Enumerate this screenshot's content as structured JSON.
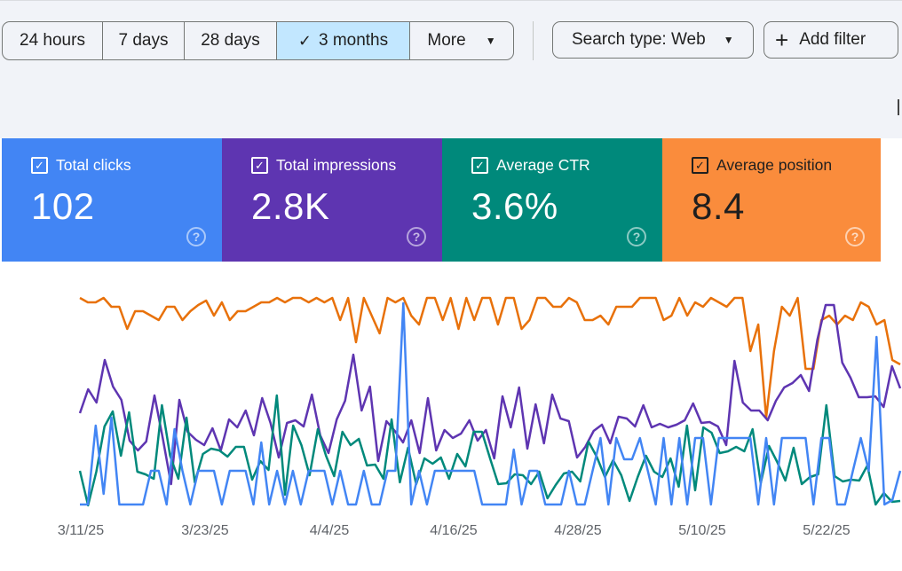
{
  "toolbar": {
    "ranges": [
      "24 hours",
      "7 days",
      "28 days",
      "3 months",
      "More"
    ],
    "selected_index": 3,
    "search_type": "Search type: Web",
    "add_filter": "Add filter"
  },
  "cards": [
    {
      "label": "Total clicks",
      "value": "102",
      "color": "#4285f4",
      "text_color": "#ffffff",
      "checked": true
    },
    {
      "label": "Total impressions",
      "value": "2.8K",
      "color": "#5e35b1",
      "text_color": "#ffffff",
      "checked": true
    },
    {
      "label": "Average CTR",
      "value": "3.6%",
      "color": "#00897b",
      "text_color": "#ffffff",
      "checked": true
    },
    {
      "label": "Average position",
      "value": "8.4",
      "color": "#fa8c3c",
      "text_color": "#1f1f1f",
      "checked": true
    }
  ],
  "chart_data": {
    "type": "line",
    "x_tick_labels": [
      "3/11/25",
      "3/23/25",
      "4/4/25",
      "4/16/25",
      "4/28/25",
      "5/10/25",
      "5/22/25"
    ],
    "grid": false,
    "legend": "none",
    "series": [
      {
        "key": "position",
        "color": "#e8710a",
        "values": [
          40,
          45,
          45,
          40,
          50,
          50,
          75,
          55,
          55,
          60,
          65,
          50,
          50,
          65,
          55,
          48,
          43,
          60,
          45,
          65,
          55,
          55,
          50,
          45,
          45,
          40,
          45,
          40,
          35,
          45,
          35,
          45,
          40,
          65,
          40,
          90,
          40,
          60,
          80,
          40,
          45,
          40,
          60,
          70,
          40,
          35,
          65,
          30,
          75,
          35,
          65,
          40,
          35,
          70,
          40,
          30,
          75,
          65,
          40,
          40,
          50,
          50,
          30,
          45,
          65,
          65,
          60,
          70,
          50,
          50,
          50,
          40,
          40,
          35,
          65,
          60,
          40,
          60,
          45,
          50,
          40,
          45,
          50,
          40,
          40,
          100,
          70,
          175,
          100,
          50,
          60,
          40,
          120,
          120,
          65,
          60,
          70,
          60,
          65,
          45,
          50,
          70,
          65,
          110,
          115
        ]
      },
      {
        "key": "impressions",
        "color": "#5e35b1",
        "values": [
          170,
          143,
          158,
          110,
          140,
          155,
          201,
          212,
          202,
          150,
          198,
          250,
          155,
          191,
          200,
          206,
          187,
          212,
          177,
          186,
          167,
          195,
          153,
          181,
          220,
          181,
          178,
          185,
          149,
          195,
          215,
          177,
          156,
          104,
          167,
          140,
          224,
          179,
          190,
          203,
          178,
          215,
          153,
          212,
          189,
          198,
          193,
          178,
          201,
          189,
          221,
          151,
          186,
          141,
          210,
          160,
          204,
          149,
          176,
          179,
          220,
          208,
          190,
          183,
          204,
          174,
          176,
          185,
          161,
          186,
          182,
          186,
          183,
          178,
          159,
          181,
          180,
          185,
          206,
          111,
          158,
          167,
          167,
          178,
          156,
          141,
          136,
          127,
          145,
          87,
          48,
          48,
          113,
          130,
          152,
          152,
          151,
          163,
          117,
          142
        ]
      },
      {
        "key": "ctr",
        "color": "#00897b",
        "values": [
          235,
          290,
          236,
          185,
          168,
          218,
          169,
          236,
          239,
          244,
          161,
          218,
          244,
          175,
          248,
          216,
          210,
          212,
          219,
          208,
          208,
          245,
          224,
          234,
          150,
          262,
          184,
          206,
          240,
          188,
          218,
          241,
          191,
          206,
          199,
          229,
          228,
          244,
          177,
          248,
          209,
          250,
          221,
          227,
          220,
          244,
          216,
          230,
          191,
          191,
          221,
          250,
          249,
          239,
          240,
          250,
          236,
          266,
          251,
          238,
          236,
          247,
          202,
          219,
          242,
          223,
          240,
          269,
          242,
          218,
          236,
          242,
          221,
          253,
          184,
          257,
          186,
          192,
          215,
          213,
          208,
          213,
          188,
          249,
          207,
          225,
          246,
          209,
          250,
          242,
          239,
          161,
          241,
          247,
          245,
          246,
          229,
          273,
          260,
          270,
          269
        ]
      },
      {
        "key": "clicks",
        "color": "#4285f4",
        "values": [
          273,
          273,
          184,
          261,
          175,
          273,
          273,
          273,
          273,
          235,
          235,
          273,
          188,
          235,
          273,
          235,
          235,
          235,
          273,
          235,
          235,
          235,
          273,
          203,
          273,
          235,
          273,
          235,
          273,
          235,
          235,
          235,
          273,
          235,
          273,
          273,
          235,
          273,
          273,
          235,
          235,
          46,
          273,
          235,
          273,
          235,
          235,
          235,
          235,
          235,
          235,
          273,
          273,
          273,
          273,
          211,
          273,
          235,
          235,
          273,
          273,
          273,
          235,
          273,
          273,
          235,
          198,
          273,
          198,
          222,
          222,
          198,
          235,
          273,
          198,
          273,
          198,
          273,
          198,
          198,
          273,
          198,
          198,
          198,
          198,
          198,
          273,
          198,
          273,
          198,
          198,
          198,
          198,
          273,
          198,
          198,
          273,
          273,
          235,
          198,
          235,
          84,
          273,
          268,
          235
        ]
      }
    ]
  }
}
